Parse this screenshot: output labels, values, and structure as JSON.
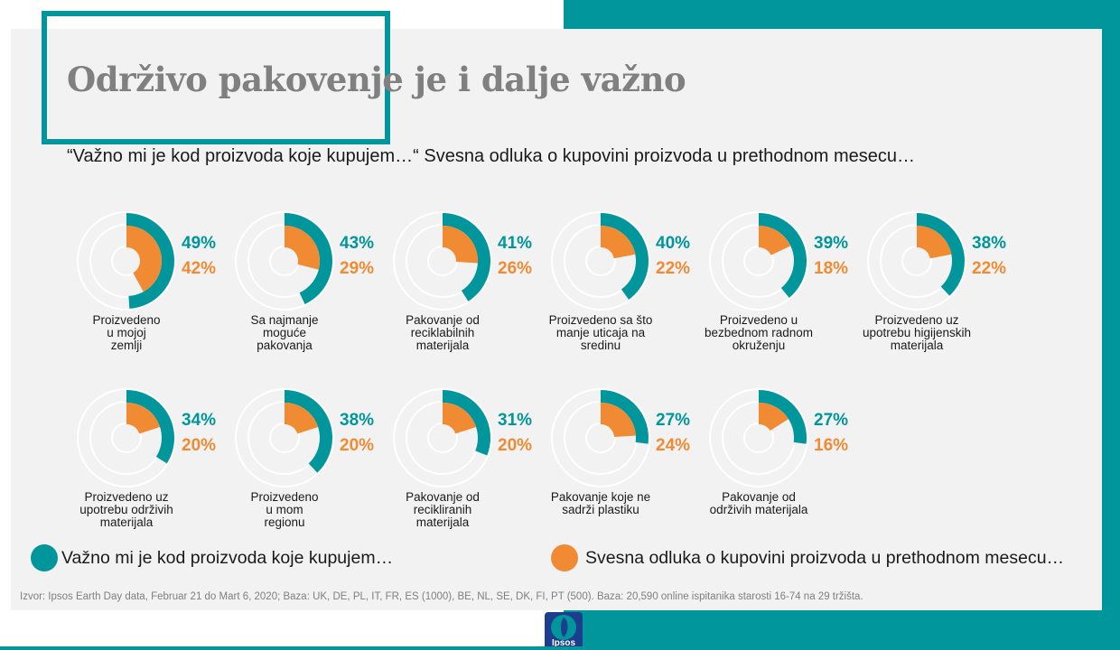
{
  "title": "Održivo pakovenje je i dalje važno",
  "subtitle": "“Važno mi je kod proizvoda koje kupujem…“ Svesna odluka o kupovini proizvoda u prethodnom mesecu…",
  "colors": {
    "teal": "#00969b",
    "orange": "#f08b34",
    "ring": "#ffffff"
  },
  "chart_data": {
    "type": "radial-bar",
    "value_unit": "%",
    "max": 100,
    "series": [
      {
        "name": "Važno mi je kod proizvoda koje kupujem…",
        "color": "#00969b"
      },
      {
        "name": "Svesna odluka o kupovini proizvoda u prethodnom mesecu…",
        "color": "#f08b34"
      }
    ],
    "categories": [
      {
        "label": "Proizvedeno u mojoj zemlji",
        "label_lines": [
          "Proizvedeno",
          "u mojoj",
          "zemlji"
        ],
        "a": 49,
        "b": 42
      },
      {
        "label": "Sa najmanje moguće pakovanja",
        "label_lines": [
          "Sa najmanje",
          "moguće",
          "pakovanja"
        ],
        "a": 43,
        "b": 29
      },
      {
        "label": "Pakovanje od reciklabilnih materijala",
        "label_lines": [
          "Pakovanje od",
          "reciklabilnih",
          "materijala"
        ],
        "a": 41,
        "b": 26
      },
      {
        "label": "Proizvedeno sa što manje uticaja na sredinu",
        "label_lines": [
          "Proizvedeno sa što",
          "manje uticaja na",
          "sredinu"
        ],
        "a": 40,
        "b": 22
      },
      {
        "label": "Proizvedeno u bezbednom radnom okruženju",
        "label_lines": [
          "Proizvedeno u",
          "bezbednom radnom",
          "okruženju"
        ],
        "a": 39,
        "b": 18
      },
      {
        "label": "Proizvedeno uz upotrebu higijenskih materijala",
        "label_lines": [
          "Proizvedeno uz",
          "upotrebu higijenskih",
          "materijala"
        ],
        "a": 38,
        "b": 22
      },
      {
        "label": "Proizvedeno uz upotrebu održivih materijala",
        "label_lines": [
          "Proizvedeno uz",
          "upotrebu održivih",
          "materijala"
        ],
        "a": 34,
        "b": 20
      },
      {
        "label": "Proizvedeno u mom regionu",
        "label_lines": [
          "Proizvedeno",
          "u mom",
          "regionu"
        ],
        "a": 38,
        "b": 20
      },
      {
        "label": "Pakovanje od recikliranih materijala",
        "label_lines": [
          "Pakovanje od",
          "recikliranih",
          "materijala"
        ],
        "a": 31,
        "b": 20
      },
      {
        "label": "Pakovanje koje ne sadrži plastiku",
        "label_lines": [
          "Pakovanje koje ne",
          "sadrži plastiku"
        ],
        "a": 27,
        "b": 24
      },
      {
        "label": "Pakovanje od održivih materijala",
        "label_lines": [
          "Pakovanje od",
          "održivih materijala"
        ],
        "a": 27,
        "b": 16
      }
    ]
  },
  "legend": {
    "a": "Važno mi je kod proizvoda koje kupujem…",
    "b": "Svesna odluka o kupovini proizvoda u prethodnom mesecu…"
  },
  "source": "Izvor: Ipsos Earth Day data, Februar 21 do Mart 6, 2020; Baza: UK, DE, PL, IT, FR, ES (1000), BE, NL, SE, DK, FI, PT (500). Baza: 20,590 online ispitanika starosti 16-74 na 29 tržišta.",
  "logo": {
    "text": "Ipsos",
    "icon": "ipsos-logo-icon"
  }
}
